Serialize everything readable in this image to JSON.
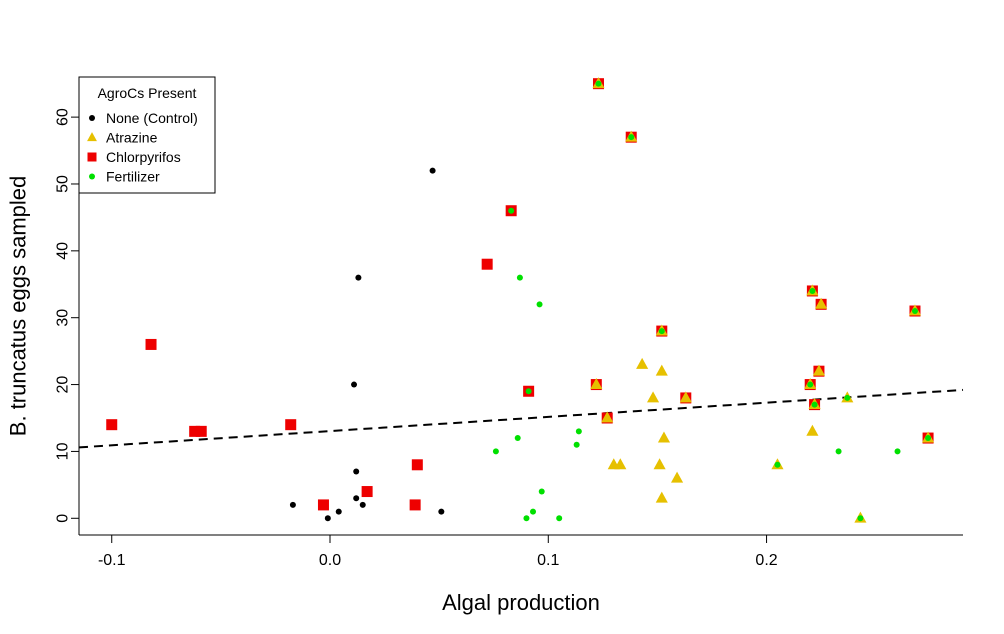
{
  "chart_data": {
    "type": "scatter",
    "xlabel": "Algal production",
    "ylabel": "B. truncatus eggs sampled",
    "xlim": [
      -0.115,
      0.29
    ],
    "ylim": [
      -2.5,
      66
    ],
    "x_ticks": [
      -0.1,
      0.0,
      0.1,
      0.2
    ],
    "x_tick_labels": [
      "-0.1",
      "0.0",
      "0.1",
      "0.2"
    ],
    "y_ticks": [
      0,
      10,
      20,
      30,
      40,
      50,
      60
    ],
    "y_tick_labels": [
      "0",
      "10",
      "20",
      "30",
      "40",
      "50",
      "60"
    ],
    "grid": false,
    "legend": {
      "title": "AgroCs Present",
      "placement": "top-left",
      "entries": [
        {
          "label": "None (Control)",
          "color": "#000000",
          "shape": "circle"
        },
        {
          "label": "Atrazine",
          "color": "#e6c000",
          "shape": "triangle"
        },
        {
          "label": "Chlorpyrifos",
          "color": "#ee0000",
          "shape": "square"
        },
        {
          "label": "Fertilizer",
          "color": "#00e000",
          "shape": "circle"
        }
      ]
    },
    "series": [
      {
        "name": "None (Control)",
        "color": "#000000",
        "shape": "circle",
        "points": [
          [
            0.047,
            52
          ],
          [
            0.013,
            36
          ],
          [
            0.011,
            20
          ],
          [
            0.012,
            7
          ],
          [
            -0.017,
            2
          ],
          [
            0.012,
            3
          ],
          [
            0.015,
            2
          ],
          [
            0.004,
            1
          ],
          [
            -0.001,
            0
          ],
          [
            0.051,
            1
          ]
        ]
      },
      {
        "name": "Chlorpyrifos",
        "color": "#ee0000",
        "shape": "square",
        "points": [
          [
            -0.1,
            14
          ],
          [
            -0.082,
            26
          ],
          [
            -0.062,
            13
          ],
          [
            -0.059,
            13
          ],
          [
            -0.018,
            14
          ],
          [
            -0.003,
            2
          ],
          [
            0.017,
            4
          ],
          [
            0.039,
            2
          ],
          [
            0.04,
            8
          ],
          [
            0.072,
            38
          ],
          [
            0.083,
            46
          ],
          [
            0.091,
            19
          ],
          [
            0.122,
            20
          ],
          [
            0.123,
            65
          ],
          [
            0.127,
            15
          ],
          [
            0.138,
            57
          ],
          [
            0.152,
            28
          ],
          [
            0.163,
            18
          ],
          [
            0.22,
            20
          ],
          [
            0.221,
            34
          ],
          [
            0.222,
            17
          ],
          [
            0.224,
            22
          ],
          [
            0.225,
            32
          ],
          [
            0.268,
            31
          ],
          [
            0.274,
            12
          ]
        ]
      },
      {
        "name": "Atrazine",
        "color": "#e6c000",
        "shape": "triangle",
        "points": [
          [
            0.123,
            65
          ],
          [
            0.138,
            57
          ],
          [
            0.152,
            28
          ],
          [
            0.122,
            20
          ],
          [
            0.127,
            15
          ],
          [
            0.13,
            8
          ],
          [
            0.133,
            8
          ],
          [
            0.143,
            23
          ],
          [
            0.148,
            18
          ],
          [
            0.152,
            22
          ],
          [
            0.151,
            8
          ],
          [
            0.152,
            3
          ],
          [
            0.153,
            12
          ],
          [
            0.159,
            6
          ],
          [
            0.163,
            18
          ],
          [
            0.205,
            8
          ],
          [
            0.22,
            20
          ],
          [
            0.221,
            34
          ],
          [
            0.221,
            13
          ],
          [
            0.222,
            17
          ],
          [
            0.224,
            22
          ],
          [
            0.225,
            32
          ],
          [
            0.237,
            18
          ],
          [
            0.243,
            0
          ],
          [
            0.268,
            31
          ],
          [
            0.274,
            12
          ]
        ]
      },
      {
        "name": "Fertilizer",
        "color": "#00e000",
        "shape": "circle",
        "points": [
          [
            0.083,
            46
          ],
          [
            0.123,
            65
          ],
          [
            0.138,
            57
          ],
          [
            0.087,
            36
          ],
          [
            0.096,
            32
          ],
          [
            0.091,
            19
          ],
          [
            0.152,
            28
          ],
          [
            0.076,
            10
          ],
          [
            0.086,
            12
          ],
          [
            0.114,
            13
          ],
          [
            0.113,
            11
          ],
          [
            0.097,
            4
          ],
          [
            0.093,
            1
          ],
          [
            0.09,
            0
          ],
          [
            0.105,
            0
          ],
          [
            0.205,
            8
          ],
          [
            0.22,
            20
          ],
          [
            0.221,
            34
          ],
          [
            0.222,
            17
          ],
          [
            0.233,
            10
          ],
          [
            0.237,
            18
          ],
          [
            0.243,
            0
          ],
          [
            0.26,
            10
          ],
          [
            0.268,
            31
          ],
          [
            0.274,
            12
          ]
        ]
      }
    ],
    "trend_line": {
      "style": "dashed",
      "color": "#000000",
      "points": [
        [
          -0.115,
          10.6
        ],
        [
          0.29,
          19.2
        ]
      ]
    }
  }
}
